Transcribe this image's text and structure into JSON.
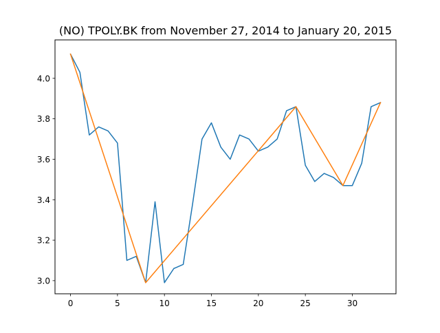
{
  "chart_data": {
    "type": "line",
    "title": "(NO) TPOLY.BK from November 27, 2014 to January 20, 2015",
    "xlabel": "",
    "ylabel": "",
    "xlim": [
      -1.65,
      34.65
    ],
    "ylim": [
      2.935,
      4.19
    ],
    "xticks": [
      0,
      5,
      10,
      15,
      20,
      25,
      30
    ],
    "yticks": [
      3.0,
      3.2,
      3.4,
      3.6,
      3.8,
      4.0
    ],
    "ytick_labels": [
      "3.0",
      "3.2",
      "3.4",
      "3.6",
      "3.8",
      "4.0"
    ],
    "grid": false,
    "legend": "none",
    "series": [
      {
        "color": "#1f77b4",
        "x": [
          0,
          1,
          2,
          3,
          4,
          5,
          6,
          7,
          8,
          9,
          10,
          11,
          12,
          13,
          14,
          15,
          16,
          17,
          18,
          19,
          20,
          21,
          22,
          23,
          24,
          25,
          26,
          27,
          28,
          29,
          30,
          31,
          32,
          33
        ],
        "y": [
          4.12,
          4.03,
          3.72,
          3.76,
          3.74,
          3.68,
          3.1,
          3.12,
          2.99,
          3.39,
          2.99,
          3.06,
          3.08,
          3.38,
          3.7,
          3.78,
          3.66,
          3.6,
          3.72,
          3.7,
          3.64,
          3.66,
          3.7,
          3.84,
          3.86,
          3.57,
          3.49,
          3.53,
          3.51,
          3.47,
          3.47,
          3.58,
          3.86,
          3.88
        ]
      },
      {
        "color": "#ff7f0e",
        "x": [
          0,
          8,
          24,
          29,
          33
        ],
        "y": [
          4.12,
          2.99,
          3.86,
          3.47,
          3.88
        ]
      }
    ]
  }
}
